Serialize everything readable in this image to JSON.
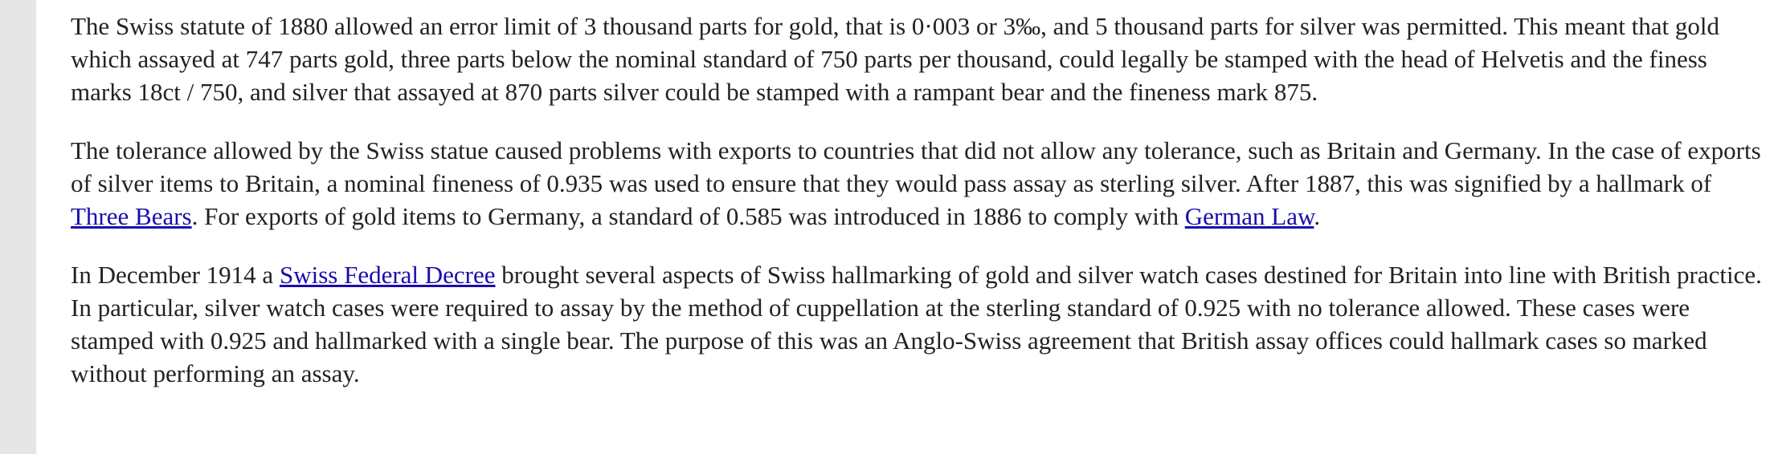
{
  "paragraphs": [
    {
      "parts": [
        "The Swiss statute of 1880 allowed an error limit of 3 thousand parts for gold, that is 0·003 or 3‰, and 5 thousand parts for silver was permitted. This meant that gold which assayed at 747 parts gold, three parts below the nominal standard of 750 parts per thousand, could legally be stamped with the head of Helvetis and the finess marks 18ct / 750, and silver that assayed at 870 parts silver could be stamped with a rampant bear and the fineness mark 875."
      ]
    },
    {
      "parts": [
        "The tolerance allowed by the Swiss statue caused problems with exports to countries that did not allow any tolerance, such as Britain and Germany. In the case of exports of silver items to Britain, a nominal fineness of 0.935 was used to ensure that they would pass assay as sterling silver. After 1887, this was signified by a hallmark of ",
        "Three Bears",
        ". For exports of gold items to Germany, a standard of 0.585 was introduced in 1886 to comply with ",
        "German Law",
        "."
      ]
    },
    {
      "parts": [
        "In December 1914 a ",
        "Swiss Federal Decree",
        " brought several aspects of Swiss hallmarking of gold and silver watch cases destined for Britain into line with British practice. In particular, silver watch cases were required to assay by the method of cuppellation at the sterling standard of 0.925 with no tolerance allowed. These cases were stamped with 0.925 and hallmarked with a single bear. The purpose of this was an Anglo-Swiss agreement that British assay offices could hallmark cases so marked without performing an assay."
      ]
    }
  ],
  "colors": {
    "link": "#1a0dab",
    "text": "#222222",
    "sidebar": "#e6e6e6"
  }
}
